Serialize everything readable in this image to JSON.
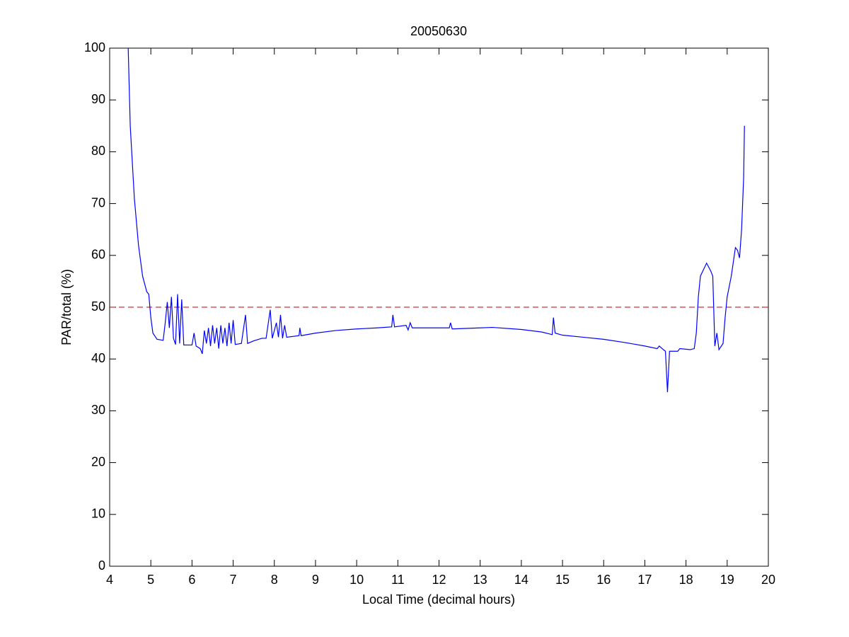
{
  "chart_data": {
    "type": "line",
    "title": "20050630",
    "x_label": "Local Time (decimal hours)",
    "y_label": "PAR/total (%)",
    "xlim": [
      4,
      20
    ],
    "ylim": [
      0,
      100
    ],
    "xticks": [
      4,
      5,
      6,
      7,
      8,
      9,
      10,
      11,
      12,
      13,
      14,
      15,
      16,
      17,
      18,
      19,
      20
    ],
    "yticks": [
      0,
      10,
      20,
      30,
      40,
      50,
      60,
      70,
      80,
      90,
      100
    ],
    "grid": false,
    "reference_line": {
      "value": 50,
      "color": "#c00000",
      "style": "dashed"
    },
    "x": [
      4.45,
      4.5,
      4.6,
      4.7,
      4.8,
      4.9,
      4.95,
      5.0,
      5.05,
      5.15,
      5.3,
      5.35,
      5.4,
      5.45,
      5.5,
      5.55,
      5.6,
      5.65,
      5.7,
      5.75,
      5.8,
      6.0,
      6.05,
      6.1,
      6.2,
      6.25,
      6.3,
      6.35,
      6.4,
      6.45,
      6.5,
      6.55,
      6.6,
      6.65,
      6.7,
      6.75,
      6.8,
      6.85,
      6.9,
      6.95,
      7.0,
      7.05,
      7.2,
      7.3,
      7.35,
      7.5,
      7.7,
      7.8,
      7.9,
      7.95,
      8.05,
      8.1,
      8.15,
      8.2,
      8.25,
      8.3,
      8.6,
      8.62,
      8.65,
      9,
      9.5,
      10,
      10.5,
      10.85,
      10.88,
      10.92,
      11.2,
      11.25,
      11.3,
      11.35,
      12,
      12.25,
      12.28,
      12.32,
      13,
      13.3,
      14,
      14.5,
      14.75,
      14.78,
      14.82,
      15,
      15.5,
      16,
      16.5,
      17,
      17.3,
      17.35,
      17.45,
      17.5,
      17.55,
      17.6,
      17.8,
      17.85,
      18.1,
      18.2,
      18.25,
      18.3,
      18.35,
      18.5,
      18.6,
      18.65,
      18.7,
      18.75,
      18.8,
      18.9,
      18.95,
      19,
      19.1,
      19.2,
      19.25,
      19.3,
      19.35,
      19.4,
      19.42
    ],
    "series": [
      {
        "color": "#0000ff",
        "values": [
          100,
          85,
          71,
          62,
          56,
          53,
          52.5,
          48,
          45,
          43.8,
          43.6,
          47,
          51,
          46,
          52,
          44,
          42.8,
          52.5,
          43,
          51.5,
          42.7,
          42.7,
          45,
          42.5,
          42,
          41,
          45.5,
          43,
          46,
          42.5,
          46.5,
          43,
          46,
          42,
          46.5,
          43,
          46,
          42.5,
          47,
          43,
          47.5,
          42.8,
          43,
          48.5,
          43,
          43.5,
          44,
          44,
          49.5,
          44,
          47,
          44.2,
          48.5,
          44,
          46.5,
          44.2,
          44.5,
          46,
          44.5,
          45,
          45.5,
          45.8,
          46,
          46.2,
          48.5,
          46.2,
          46.5,
          45.6,
          47,
          46,
          46,
          46,
          47,
          45.8,
          46,
          46.1,
          45.7,
          45.2,
          44.7,
          48,
          45,
          44.6,
          44.2,
          43.8,
          43.2,
          42.5,
          42,
          42.5,
          41.8,
          41.5,
          33.6,
          41.5,
          41.5,
          42,
          41.8,
          42,
          45,
          52,
          56,
          58.5,
          57,
          56,
          42.5,
          45,
          41.8,
          43,
          48,
          52,
          56,
          61.5,
          61,
          59.5,
          65,
          75,
          85
        ]
      }
    ]
  }
}
